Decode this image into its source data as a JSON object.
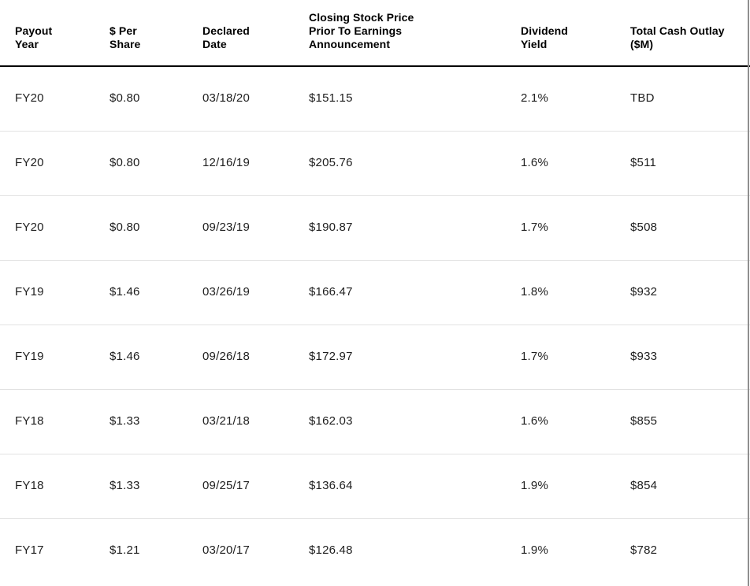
{
  "table": {
    "columns": [
      {
        "id": "payout_year",
        "label": "Payout\nYear"
      },
      {
        "id": "per_share",
        "label": "$ Per\nShare"
      },
      {
        "id": "declared_date",
        "label": "Declared\nDate"
      },
      {
        "id": "closing_price",
        "label": "Closing Stock Price\nPrior To Earnings\nAnnouncement"
      },
      {
        "id": "dividend_yield",
        "label": "Dividend\nYield"
      },
      {
        "id": "total_cash_outlay",
        "label": "Total Cash Outlay\n($M)"
      }
    ],
    "rows": [
      [
        "FY20",
        "$0.80",
        "03/18/20",
        "$151.15",
        "2.1%",
        "TBD"
      ],
      [
        "FY20",
        "$0.80",
        "12/16/19",
        "$205.76",
        "1.6%",
        "$511"
      ],
      [
        "FY20",
        "$0.80",
        "09/23/19",
        "$190.87",
        "1.7%",
        "$508"
      ],
      [
        "FY19",
        "$1.46",
        "03/26/19",
        "$166.47",
        "1.8%",
        "$932"
      ],
      [
        "FY19",
        "$1.46",
        "09/26/18",
        "$172.97",
        "1.7%",
        "$933"
      ],
      [
        "FY18",
        "$1.33",
        "03/21/18",
        "$162.03",
        "1.6%",
        "$855"
      ],
      [
        "FY18",
        "$1.33",
        "09/25/17",
        "$136.64",
        "1.9%",
        "$854"
      ],
      [
        "FY17",
        "$1.21",
        "03/20/17",
        "$126.48",
        "1.9%",
        "$782"
      ]
    ]
  },
  "colors": {
    "header_text": "#000000",
    "body_text": "#1e1e1e",
    "header_rule": "#000000",
    "row_divider": "#e2e2e2",
    "background": "#ffffff",
    "right_edge": "#8f8f8f"
  }
}
